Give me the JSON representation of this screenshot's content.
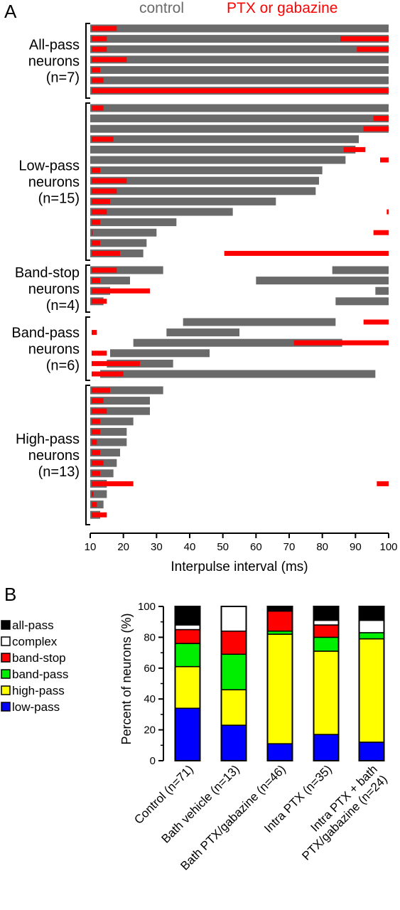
{
  "panel_a": {
    "label": "A"
  },
  "panel_b": {
    "label": "B"
  },
  "colors": {
    "control": "#6a6a6a",
    "drug": "#ff0000",
    "axis": "#000000"
  },
  "chart_data": [
    {
      "type": "bar",
      "legend": [
        {
          "name": "control",
          "color": "#6a6a6a"
        },
        {
          "name": "PTX or gabazine",
          "color": "#ff0000"
        }
      ],
      "xlabel": "Interpulse interval (ms)",
      "xlim": [
        10,
        100
      ],
      "xticks": [
        "10",
        "20",
        "30",
        "40",
        "50",
        "60",
        "70",
        "80",
        "90",
        "100"
      ],
      "groups": [
        {
          "label_lines": [
            "All-pass",
            "neurons",
            "(n=7)"
          ],
          "rows": [
            {
              "control": [
                [
                  10,
                  100
                ]
              ],
              "drug": [
                [
                  10,
                  18
                ]
              ]
            },
            {
              "control": [
                [
                  10,
                  100
                ]
              ],
              "drug": [
                [
                  10,
                  15
                ],
                [
                  85,
                  100
                ]
              ]
            },
            {
              "control": [
                [
                  10,
                  100
                ]
              ],
              "drug": [
                [
                  10,
                  15
                ],
                [
                  90,
                  100
                ]
              ]
            },
            {
              "control": [
                [
                  10,
                  100
                ]
              ],
              "drug": [
                [
                  10,
                  21
                ]
              ]
            },
            {
              "control": [
                [
                  10,
                  100
                ]
              ],
              "drug": [
                [
                  10,
                  13
                ]
              ]
            },
            {
              "control": [
                [
                  10,
                  100
                ]
              ],
              "drug": [
                [
                  10,
                  14
                ]
              ]
            },
            {
              "control": [
                [
                  10,
                  100
                ]
              ],
              "drug": [
                [
                  10,
                  100
                ]
              ]
            }
          ]
        },
        {
          "label_lines": [
            "Low-pass",
            "neurons",
            "(n=15)"
          ],
          "rows": [
            {
              "control": [
                [
                  10,
                  100
                ]
              ],
              "drug": [
                [
                  10,
                  14
                ]
              ]
            },
            {
              "control": [
                [
                  10,
                  100
                ]
              ],
              "drug": [
                [
                  95,
                  100
                ]
              ]
            },
            {
              "control": [
                [
                  10,
                  100
                ]
              ],
              "drug": [
                [
                  92,
                  100
                ]
              ]
            },
            {
              "control": [
                [
                  10,
                  91
                ]
              ],
              "drug": [
                [
                  10,
                  17
                ]
              ]
            },
            {
              "control": [
                [
                  10,
                  90
                ]
              ],
              "drug": [
                [
                  86,
                  93
                ]
              ]
            },
            {
              "control": [
                [
                  10,
                  87
                ]
              ],
              "drug": [
                [
                  97,
                  100
                ]
              ]
            },
            {
              "control": [
                [
                  10,
                  80
                ]
              ],
              "drug": [
                [
                  10,
                  13
                ]
              ]
            },
            {
              "control": [
                [
                  10,
                  79
                ]
              ],
              "drug": [
                [
                  10,
                  21
                ]
              ]
            },
            {
              "control": [
                [
                  10,
                  78
                ]
              ],
              "drug": [
                [
                  10,
                  18
                ]
              ]
            },
            {
              "control": [
                [
                  10,
                  66
                ]
              ],
              "drug": [
                [
                  10,
                  16
                ]
              ]
            },
            {
              "control": [
                [
                  10,
                  53
                ]
              ],
              "drug": [
                [
                  10,
                  15
                ],
                [
                  99,
                  100
                ]
              ]
            },
            {
              "control": [
                [
                  10,
                  36
                ]
              ],
              "drug": [
                [
                  10,
                  13
                ]
              ]
            },
            {
              "control": [
                [
                  10,
                  30
                ]
              ],
              "drug": [
                [
                  10,
                  10.3
                ],
                [
                  95,
                  100
                ]
              ]
            },
            {
              "control": [
                [
                  10,
                  27
                ]
              ],
              "drug": [
                [
                  10,
                  13
                ]
              ]
            },
            {
              "control": [
                [
                  10,
                  26
                ]
              ],
              "drug": [
                [
                  10,
                  19
                ],
                [
                  50,
                  100
                ]
              ]
            }
          ]
        },
        {
          "label_lines": [
            "Band-stop",
            "neurons",
            "(n=4)"
          ],
          "rows": [
            {
              "control": [
                [
                  10,
                  32
                ],
                [
                  83,
                  100
                ]
              ],
              "drug": [
                [
                  10,
                  18
                ]
              ]
            },
            {
              "control": [
                [
                  10,
                  22
                ],
                [
                  60,
                  100
                ]
              ],
              "drug": [
                [
                  10,
                  13
                ]
              ]
            },
            {
              "control": [
                [
                  10,
                  16
                ],
                [
                  96,
                  100
                ]
              ],
              "drug": [
                [
                  10,
                  28
                ]
              ]
            },
            {
              "control": [
                [
                  10,
                  14
                ],
                [
                  84,
                  100
                ]
              ],
              "drug": [
                [
                  10,
                  15
                ]
              ]
            }
          ]
        },
        {
          "label_lines": [
            "Band-pass",
            "neurons",
            "(n=6)"
          ],
          "rows": [
            {
              "control": [
                [
                  38,
                  84
                ]
              ],
              "drug": [
                [
                  92,
                  100
                ]
              ]
            },
            {
              "control": [
                [
                  33,
                  55
                ]
              ],
              "drug": [
                [
                  10,
                  12
                ]
              ]
            },
            {
              "control": [
                [
                  23,
                  86
                ]
              ],
              "drug": [
                [
                  71,
                  100
                ]
              ]
            },
            {
              "control": [
                [
                  16,
                  46
                ]
              ],
              "drug": [
                [
                  10,
                  15
                ]
              ]
            },
            {
              "control": [
                [
                  15,
                  35
                ]
              ],
              "drug": [
                [
                  10,
                  25
                ]
              ]
            },
            {
              "control": [
                [
                  13,
                  96
                ]
              ],
              "drug": [
                [
                  10,
                  20
                ]
              ]
            }
          ]
        },
        {
          "label_lines": [
            "High-pass",
            "neurons",
            "(n=13)"
          ],
          "rows": [
            {
              "control": [
                [
                  10,
                  32
                ]
              ],
              "drug": [
                [
                  10,
                  16
                ]
              ]
            },
            {
              "control": [
                [
                  10,
                  28
                ]
              ],
              "drug": [
                [
                  10,
                  14
                ]
              ]
            },
            {
              "control": [
                [
                  10,
                  28
                ]
              ],
              "drug": [
                [
                  10,
                  15
                ]
              ]
            },
            {
              "control": [
                [
                  10,
                  23
                ]
              ],
              "drug": [
                [
                  10,
                  13
                ]
              ]
            },
            {
              "control": [
                [
                  10,
                  21
                ]
              ],
              "drug": [
                [
                  10,
                  13
                ]
              ]
            },
            {
              "control": [
                [
                  10,
                  21
                ]
              ],
              "drug": [
                [
                  10,
                  12
                ]
              ]
            },
            {
              "control": [
                [
                  10,
                  19
                ]
              ],
              "drug": [
                [
                  10,
                  13
                ]
              ]
            },
            {
              "control": [
                [
                  10,
                  18
                ]
              ],
              "drug": [
                [
                  10,
                  14
                ]
              ]
            },
            {
              "control": [
                [
                  10,
                  17
                ]
              ],
              "drug": [
                [
                  10,
                  13
                ]
              ]
            },
            {
              "control": [
                [
                  10,
                  15
                ]
              ],
              "drug": [
                [
                  10,
                  23
                ],
                [
                  96,
                  100
                ]
              ]
            },
            {
              "control": [
                [
                  10,
                  15
                ]
              ],
              "drug": [
                [
                  10,
                  11
                ]
              ]
            },
            {
              "control": [
                [
                  10,
                  14
                ]
              ],
              "drug": [
                [
                  10,
                  12
                ]
              ]
            },
            {
              "control": [
                [
                  10,
                  13
                ]
              ],
              "drug": [
                [
                  10,
                  15
                ]
              ]
            }
          ]
        }
      ]
    },
    {
      "type": "bar",
      "stacked": true,
      "ylabel": "Percent of neurons (%)",
      "ylim": [
        0,
        100
      ],
      "yticks": [
        "0",
        "20",
        "40",
        "60",
        "80",
        "100"
      ],
      "categories": [
        "Control (n=71)",
        "Bath vehicle (n=13)",
        "Bath PTX/gabazine (n=46)",
        "Intra PTX (n=35)",
        "Intra PTX + bath PTX/gabazine (n=24)"
      ],
      "category_label_lines": [
        [
          "Control (n=71)"
        ],
        [
          "Bath vehicle (n=13)"
        ],
        [
          "Bath PTX/gabazine (n=46)"
        ],
        [
          "Intra PTX (n=35)"
        ],
        [
          "Intra PTX + bath",
          "PTX/gabazine (n=24)"
        ]
      ],
      "series": [
        {
          "name": "low-pass",
          "color": "#0000ff",
          "values": [
            34,
            23,
            11,
            17,
            12
          ]
        },
        {
          "name": "high-pass",
          "color": "#ffff00",
          "values": [
            27,
            23,
            71,
            54,
            67
          ]
        },
        {
          "name": "band-pass",
          "color": "#00ee00",
          "values": [
            15,
            23,
            2,
            9,
            4
          ]
        },
        {
          "name": "band-stop",
          "color": "#ff0000",
          "values": [
            9,
            15,
            13,
            8,
            0
          ]
        },
        {
          "name": "complex",
          "color": "#ffffff",
          "values": [
            3,
            16,
            0,
            3,
            8
          ]
        },
        {
          "name": "all-pass",
          "color": "#000000",
          "values": [
            12,
            0,
            3,
            9,
            9
          ]
        }
      ],
      "legend_order": [
        "all-pass",
        "complex",
        "band-stop",
        "band-pass",
        "high-pass",
        "low-pass"
      ]
    }
  ]
}
